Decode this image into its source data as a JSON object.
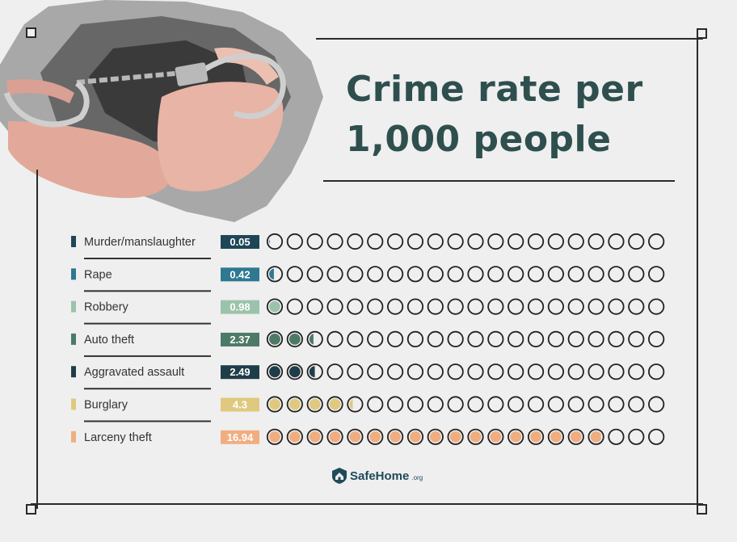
{
  "title_line1": "Crime rate per",
  "title_line2": "1,000 people",
  "brand": {
    "name": "SafeHome",
    "tld": ".org"
  },
  "chart_data": {
    "type": "pictograph",
    "title": "Crime rate per 1,000 people",
    "unit": "per 1,000 people",
    "circles_per_row": 20,
    "value_per_circle": 1,
    "categories": [
      "Murder/manslaughter",
      "Rape",
      "Robbery",
      "Auto theft",
      "Aggravated assault",
      "Burglary",
      "Larceny theft"
    ],
    "values": [
      0.05,
      0.42,
      0.98,
      2.37,
      2.49,
      4.3,
      16.94
    ],
    "value_labels": [
      "0.05",
      "0.42",
      "0.98",
      "2.37",
      "2.49",
      "4.3",
      "16.94"
    ],
    "colors": [
      "#1f4558",
      "#2e7892",
      "#9bc3ab",
      "#4d7a66",
      "#1f3d48",
      "#e0c97f",
      "#f0ae80"
    ]
  }
}
